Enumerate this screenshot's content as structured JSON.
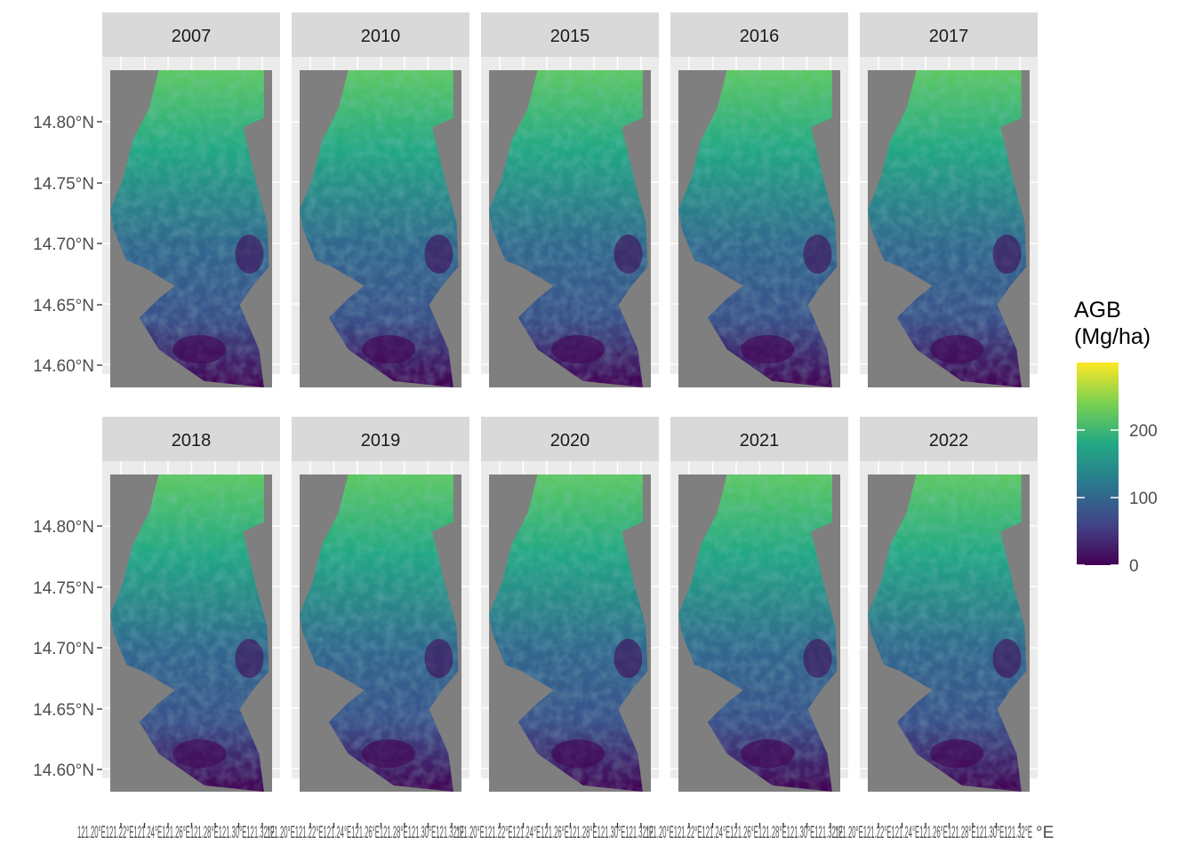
{
  "figure": {
    "facets": [
      "2007",
      "2010",
      "2015",
      "2016",
      "2017",
      "2018",
      "2019",
      "2020",
      "2021",
      "2022"
    ],
    "y_axis_labels": [
      "14.80°N",
      "14.75°N",
      "14.70°N",
      "14.65°N",
      "14.60°N"
    ],
    "x_axis_label_text": "121.20°E121.22°E121.24°E121.26°E121.28°E121.30°E121.32°E",
    "x_axis_tail_label": "°E"
  },
  "legend": {
    "title_line1": "AGB",
    "title_line2": "(Mg/ha)",
    "ticks": [
      "200",
      "100",
      "0"
    ],
    "colors": [
      "#fde725",
      "#7ad151",
      "#22a884",
      "#2a788e",
      "#414487",
      "#440154"
    ],
    "max_value": 300
  },
  "map_colors": {
    "background_panel": "#ebebeb",
    "strip": "#d9d9d9",
    "raster_extent": "#7f7f7f",
    "low": "#440154",
    "mid": "#2a788e",
    "high": "#fde725"
  }
}
